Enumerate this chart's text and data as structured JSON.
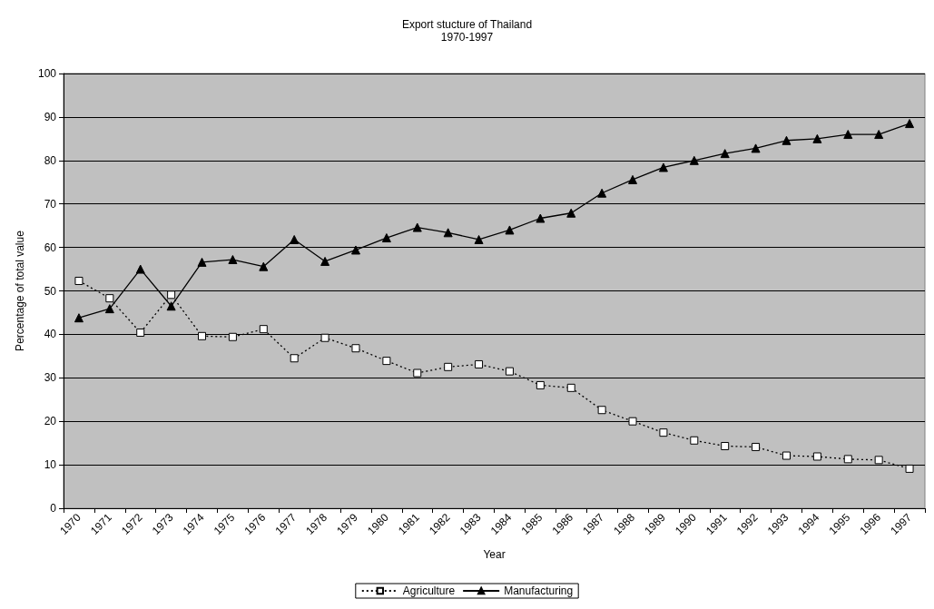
{
  "chart_data": {
    "type": "line",
    "title": "Export stucture of Thailand",
    "subtitle": "1970-1997",
    "xlabel": "Year",
    "ylabel": "Percentage of total value",
    "categories": [
      "1970",
      "1971",
      "1972",
      "1973",
      "1974",
      "1975",
      "1976",
      "1977",
      "1978",
      "1979",
      "1980",
      "1981",
      "1982",
      "1983",
      "1984",
      "1985",
      "1986",
      "1987",
      "1988",
      "1989",
      "1990",
      "1991",
      "1992",
      "1993",
      "1994",
      "1995",
      "1996",
      "1997"
    ],
    "series": [
      {
        "name": "Agriculture",
        "color": "#000000",
        "marker": "square",
        "line_style": "dotted",
        "values": [
          52.3,
          48.3,
          40.4,
          49.1,
          39.6,
          39.4,
          41.2,
          34.5,
          39.2,
          36.8,
          33.9,
          31.1,
          32.5,
          33.1,
          31.5,
          28.3,
          27.7,
          22.6,
          20,
          17.4,
          15.6,
          14.3,
          14.1,
          12.1,
          11.9,
          11.3,
          11.1,
          9.1
        ]
      },
      {
        "name": "Manufacturing",
        "color": "#000000",
        "marker": "triangle",
        "line_style": "solid",
        "values": [
          43.8,
          45.9,
          55,
          46.5,
          56.6,
          57.2,
          55.6,
          61.8,
          56.8,
          59.4,
          62.2,
          64.6,
          63.4,
          61.8,
          64,
          66.7,
          67.9,
          72.5,
          75.6,
          78.4,
          80,
          81.6,
          82.8,
          84.6,
          85,
          86,
          86,
          88.5
        ]
      }
    ],
    "ylim": [
      0,
      100
    ],
    "yticks": [
      0,
      10,
      20,
      30,
      40,
      50,
      60,
      70,
      80,
      90,
      100
    ],
    "grid": "y",
    "legend": "bottom"
  }
}
